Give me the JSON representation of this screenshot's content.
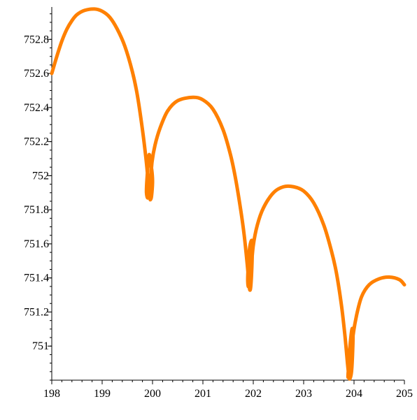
{
  "chart_data": {
    "type": "line",
    "title": "",
    "xlabel": "",
    "ylabel": "",
    "xlim": [
      198,
      205
    ],
    "ylim": [
      750.8,
      752.99
    ],
    "grid": false,
    "x_ticks": [
      198,
      199,
      200,
      201,
      202,
      203,
      204,
      205
    ],
    "x_tick_labels": [
      "198",
      "199",
      "200",
      "201",
      "202",
      "203",
      "204",
      "205"
    ],
    "y_ticks": [
      751,
      751.2,
      751.4,
      751.6,
      751.8,
      752,
      752.2,
      752.4,
      752.6,
      752.8
    ],
    "y_tick_labels": [
      "751",
      "751.2",
      "751.4",
      "751.6",
      "751.8",
      "752",
      "752.2",
      "752.4",
      "752.6",
      "752.8"
    ],
    "colors": {
      "series": "#ff8000",
      "axis": "#000000",
      "background": "#ffffff"
    },
    "series": [
      {
        "color": "#ff8000",
        "points": [
          [
            198.0,
            752.6
          ],
          [
            198.1,
            752.7
          ],
          [
            198.2,
            752.79
          ],
          [
            198.3,
            752.86
          ],
          [
            198.4,
            752.91
          ],
          [
            198.5,
            752.945
          ],
          [
            198.65,
            752.97
          ],
          [
            198.85,
            752.978
          ],
          [
            199.0,
            752.965
          ],
          [
            199.15,
            752.93
          ],
          [
            199.3,
            752.86
          ],
          [
            199.45,
            752.76
          ],
          [
            199.6,
            752.61
          ],
          [
            199.7,
            752.47
          ],
          [
            199.8,
            752.27
          ],
          [
            199.87,
            752.1
          ],
          [
            199.92,
            751.95
          ],
          [
            199.95,
            751.87
          ],
          [
            199.96,
            751.86
          ],
          [
            199.98,
            751.88
          ],
          [
            200.0,
            751.96
          ],
          [
            199.99,
            752.02
          ],
          [
            199.96,
            752.08
          ],
          [
            199.93,
            752.12
          ],
          [
            199.89,
            751.98
          ],
          [
            199.88,
            751.9
          ],
          [
            199.91,
            751.87
          ],
          [
            199.95,
            751.93
          ],
          [
            199.99,
            752.08
          ],
          [
            200.05,
            752.18
          ],
          [
            200.15,
            752.28
          ],
          [
            200.3,
            752.38
          ],
          [
            200.5,
            752.44
          ],
          [
            200.8,
            752.46
          ],
          [
            201.0,
            752.445
          ],
          [
            201.2,
            752.39
          ],
          [
            201.4,
            752.27
          ],
          [
            201.55,
            752.12
          ],
          [
            201.65,
            751.98
          ],
          [
            201.75,
            751.8
          ],
          [
            201.82,
            751.65
          ],
          [
            201.88,
            751.48
          ],
          [
            201.91,
            751.38
          ],
          [
            201.93,
            751.33
          ],
          [
            201.95,
            751.35
          ],
          [
            201.97,
            751.45
          ],
          [
            201.98,
            751.56
          ],
          [
            201.97,
            751.62
          ],
          [
            201.93,
            751.58
          ],
          [
            201.9,
            751.47
          ],
          [
            201.89,
            751.38
          ],
          [
            201.91,
            751.35
          ],
          [
            201.95,
            751.43
          ],
          [
            202.0,
            751.59
          ],
          [
            202.08,
            751.71
          ],
          [
            202.2,
            751.81
          ],
          [
            202.4,
            751.9
          ],
          [
            202.6,
            751.935
          ],
          [
            202.8,
            751.935
          ],
          [
            203.0,
            751.91
          ],
          [
            203.2,
            751.84
          ],
          [
            203.4,
            751.71
          ],
          [
            203.55,
            751.56
          ],
          [
            203.65,
            751.43
          ],
          [
            203.75,
            751.24
          ],
          [
            203.82,
            751.06
          ],
          [
            203.87,
            750.9
          ],
          [
            203.9,
            750.82
          ],
          [
            203.92,
            750.81
          ],
          [
            203.95,
            750.85
          ],
          [
            203.97,
            750.95
          ],
          [
            203.98,
            751.07
          ],
          [
            203.96,
            751.1
          ],
          [
            203.92,
            751.0
          ],
          [
            203.89,
            750.87
          ],
          [
            203.88,
            750.82
          ],
          [
            203.9,
            750.83
          ],
          [
            203.94,
            750.93
          ],
          [
            203.98,
            751.06
          ],
          [
            204.05,
            751.18
          ],
          [
            204.15,
            751.29
          ],
          [
            204.3,
            751.36
          ],
          [
            204.5,
            751.395
          ],
          [
            204.7,
            751.405
          ],
          [
            204.9,
            751.39
          ],
          [
            205.0,
            751.36
          ]
        ]
      }
    ]
  }
}
